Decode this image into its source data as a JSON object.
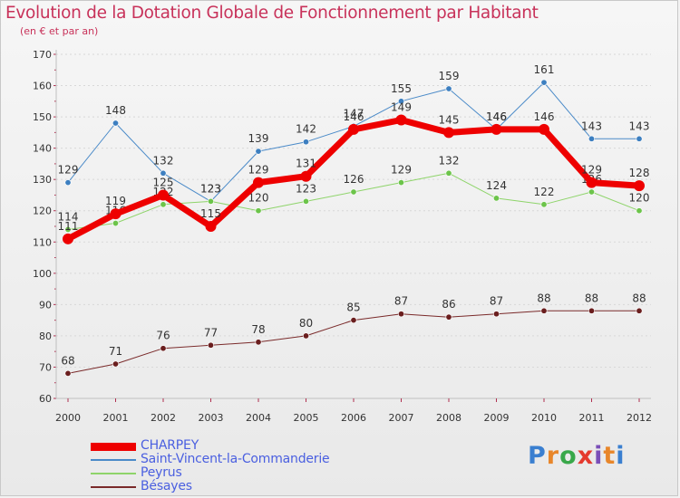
{
  "title": "Evolution de la Dotation Globale de Fonctionnement par Habitant",
  "subtitle": "(en € et par an)",
  "logo": {
    "text": "Proxiti",
    "letter_colors": [
      "#3a7fd0",
      "#e8862a",
      "#39a84a",
      "#e53a2e",
      "#7a4fb8",
      "#e8862a",
      "#3a7fd0"
    ]
  },
  "colors": {
    "title": "#c8325a",
    "axis": "#c0c0c0",
    "grid": "#d8d8d8",
    "tick_label": "#333333",
    "y_tick_label": "#333333",
    "legend_text": "#4a5fe0"
  },
  "chart_data": {
    "type": "line",
    "title": "Evolution de la Dotation Globale de Fonctionnement par Habitant",
    "subtitle": "(en € et par an)",
    "x": [
      2000,
      2001,
      2002,
      2003,
      2004,
      2005,
      2006,
      2007,
      2008,
      2009,
      2010,
      2011,
      2012
    ],
    "ylim": [
      60,
      170
    ],
    "yticks": [
      60,
      70,
      80,
      90,
      100,
      110,
      120,
      130,
      140,
      150,
      160,
      170
    ],
    "grid": true,
    "legend_position": "bottom-left",
    "series": [
      {
        "name": "Saint-Vincent-la-Commanderie",
        "color": "#4a8ac8",
        "marker_color": "#3d7fc0",
        "width": 1,
        "values": [
          129,
          148,
          132,
          123,
          139,
          142,
          147,
          155,
          159,
          146,
          161,
          143,
          143
        ],
        "labels": [
          "129",
          "148",
          "132",
          "123",
          "139",
          "142",
          "147",
          "155",
          "159",
          "146",
          "161",
          "143",
          "143"
        ]
      },
      {
        "name": "Peyrus",
        "color": "#8ed46a",
        "marker_color": "#6cc44a",
        "width": 1,
        "values": [
          114,
          116,
          122,
          123,
          120,
          123,
          126,
          129,
          132,
          124,
          122,
          126,
          120
        ],
        "labels": [
          "114",
          "116",
          "122",
          "123",
          "120",
          "123",
          "126",
          "129",
          "132",
          "124",
          "122",
          "126",
          "120"
        ]
      },
      {
        "name": "Bésayes",
        "color": "#7a2a2a",
        "marker_color": "#6a1e1e",
        "width": 1,
        "values": [
          68,
          71,
          76,
          77,
          78,
          80,
          85,
          87,
          86,
          87,
          88,
          88,
          88
        ],
        "labels": [
          "68",
          "71",
          "76",
          "77",
          "78",
          "80",
          "85",
          "87",
          "86",
          "87",
          "88",
          "88",
          "88"
        ]
      },
      {
        "name": "CHARPEY",
        "color": "#ee0000",
        "marker_color": "#ee0000",
        "width": 7,
        "values": [
          111,
          119,
          125,
          115,
          129,
          131,
          146,
          149,
          145,
          146,
          146,
          129,
          128
        ],
        "labels": [
          "111",
          "119",
          "125",
          "115",
          "129",
          "131",
          "146",
          "149",
          "145",
          "146",
          "146",
          "129",
          "128"
        ]
      }
    ],
    "legend": [
      {
        "name": "CHARPEY",
        "color": "#ee0000",
        "width": 7
      },
      {
        "name": "Saint-Vincent-la-Commanderie",
        "color": "#4a8ac8",
        "width": 1
      },
      {
        "name": "Peyrus",
        "color": "#8ed46a",
        "width": 1
      },
      {
        "name": "Bésayes",
        "color": "#7a2a2a",
        "width": 1
      }
    ]
  }
}
